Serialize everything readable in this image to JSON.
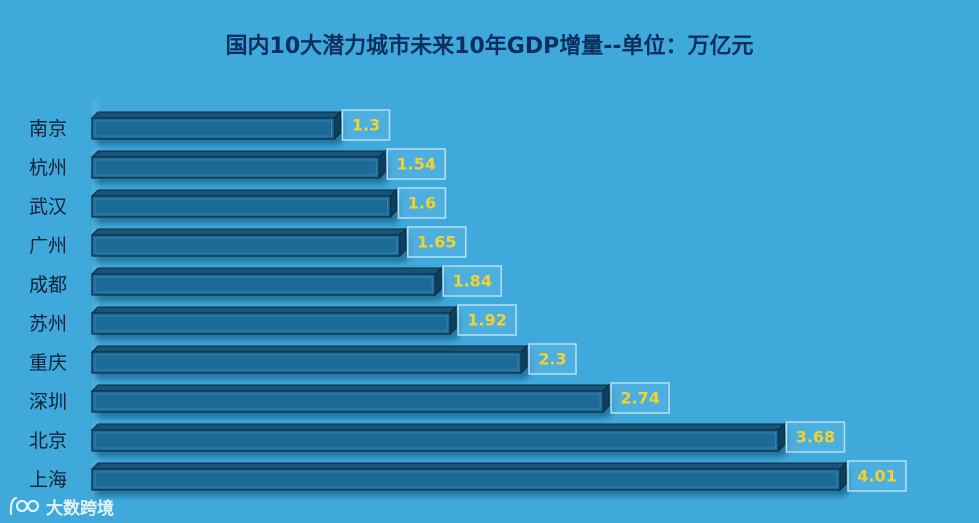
{
  "chart_data": {
    "type": "bar",
    "orientation": "horizontal",
    "title": "国内10大潜力城市未来10年GDP增量--单位：万亿元",
    "categories": [
      "南京",
      "杭州",
      "武汉",
      "广州",
      "成都",
      "苏州",
      "重庆",
      "深圳",
      "北京",
      "上海"
    ],
    "values": [
      1.3,
      1.54,
      1.6,
      1.65,
      1.84,
      1.92,
      2.3,
      2.74,
      3.68,
      4.01
    ],
    "value_labels": [
      "1.3",
      "1.54",
      "1.6",
      "1.65",
      "1.84",
      "1.92",
      "2.3",
      "2.74",
      "3.68",
      "4.01"
    ],
    "xlim": [
      0,
      4.01
    ],
    "grid": false,
    "legend": "none",
    "colors": {
      "background": "#3fa9dc",
      "bar_front": "#1f6a96",
      "bar_top": "#165478",
      "bar_side": "#0f3f5c",
      "bar_edge": "#0a2a40",
      "label_text": "#f2d22e",
      "label_border": "#b8e0f2",
      "category_text": "#0d2236",
      "title_text": "#0c2f5e"
    }
  },
  "watermark": {
    "text": "大数跨境",
    "icon": "logo-icon"
  }
}
